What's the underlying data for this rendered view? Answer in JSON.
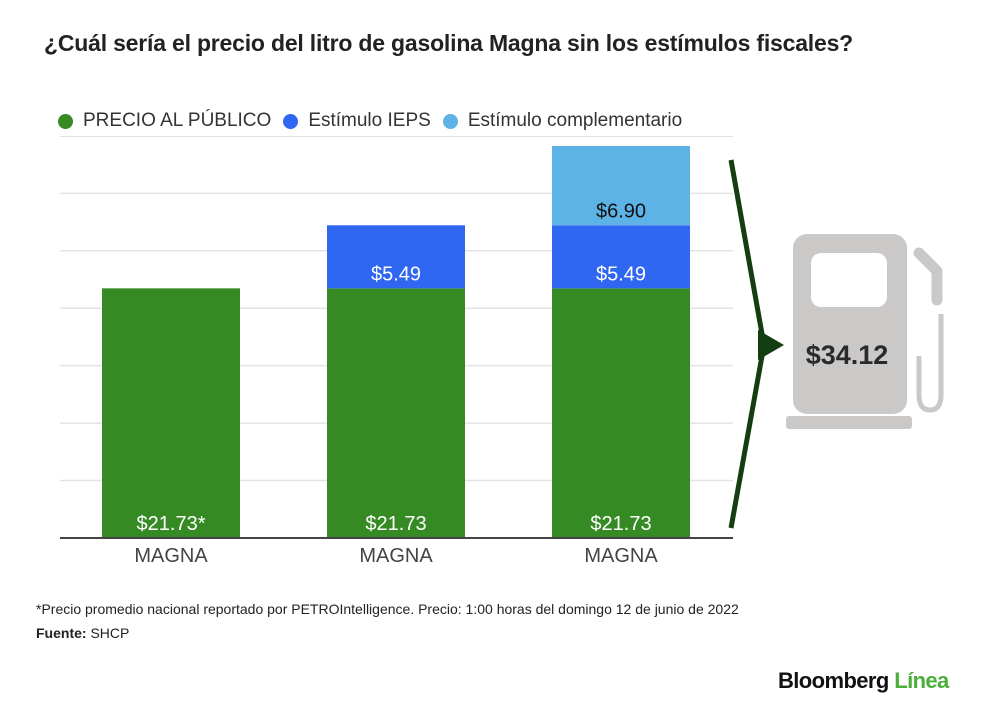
{
  "title": "¿Cuál sería el precio del litro de gasolina Magna sin los estímulos fiscales?",
  "legend": [
    {
      "label": "PRECIO AL PÚBLICO",
      "color": "#368a24"
    },
    {
      "label": "Estímulo IEPS",
      "color": "#2f66f2"
    },
    {
      "label": "Estímulo complementario",
      "color": "#5db3e6"
    }
  ],
  "footnote": "*Precio promedio nacional reportado por PETROIntelligence. Precio: 1:00 horas del domingo 12 de junio de 2022",
  "source": {
    "label": "Fuente:",
    "value": "SHCP"
  },
  "brand": {
    "part1": "Bloomberg",
    "part2": "Línea"
  },
  "pump": {
    "total_label": "$34.12",
    "icon": "gas-pump-icon"
  },
  "chart_data": {
    "type": "bar",
    "stacked": true,
    "title": "¿Cuál sería el precio del litro de gasolina Magna sin los estímulos fiscales?",
    "xlabel": "",
    "ylabel": "",
    "categories": [
      "MAGNA",
      "MAGNA",
      "MAGNA"
    ],
    "ylim": [
      0,
      34.12
    ],
    "gridlines": [
      5,
      10,
      15,
      20,
      25,
      30
    ],
    "grid": true,
    "legend_position": "top-left",
    "series": [
      {
        "name": "PRECIO AL PÚBLICO",
        "color": "#368a24",
        "values": [
          21.73,
          21.73,
          21.73
        ],
        "labels": [
          "$21.73*",
          "$21.73",
          "$21.73"
        ],
        "label_color": "#ffffff"
      },
      {
        "name": "Estímulo IEPS",
        "color": "#2f66f2",
        "values": [
          0,
          5.49,
          5.49
        ],
        "labels": [
          "",
          "$5.49",
          "$5.49"
        ],
        "label_color": "#ffffff"
      },
      {
        "name": "Estímulo complementario",
        "color": "#5db3e6",
        "values": [
          0,
          0,
          6.9
        ],
        "labels": [
          "",
          "",
          "$6.90"
        ],
        "label_color": "#111111"
      }
    ],
    "annotation": {
      "text": "$34.12",
      "target": "bar 3 total"
    }
  }
}
